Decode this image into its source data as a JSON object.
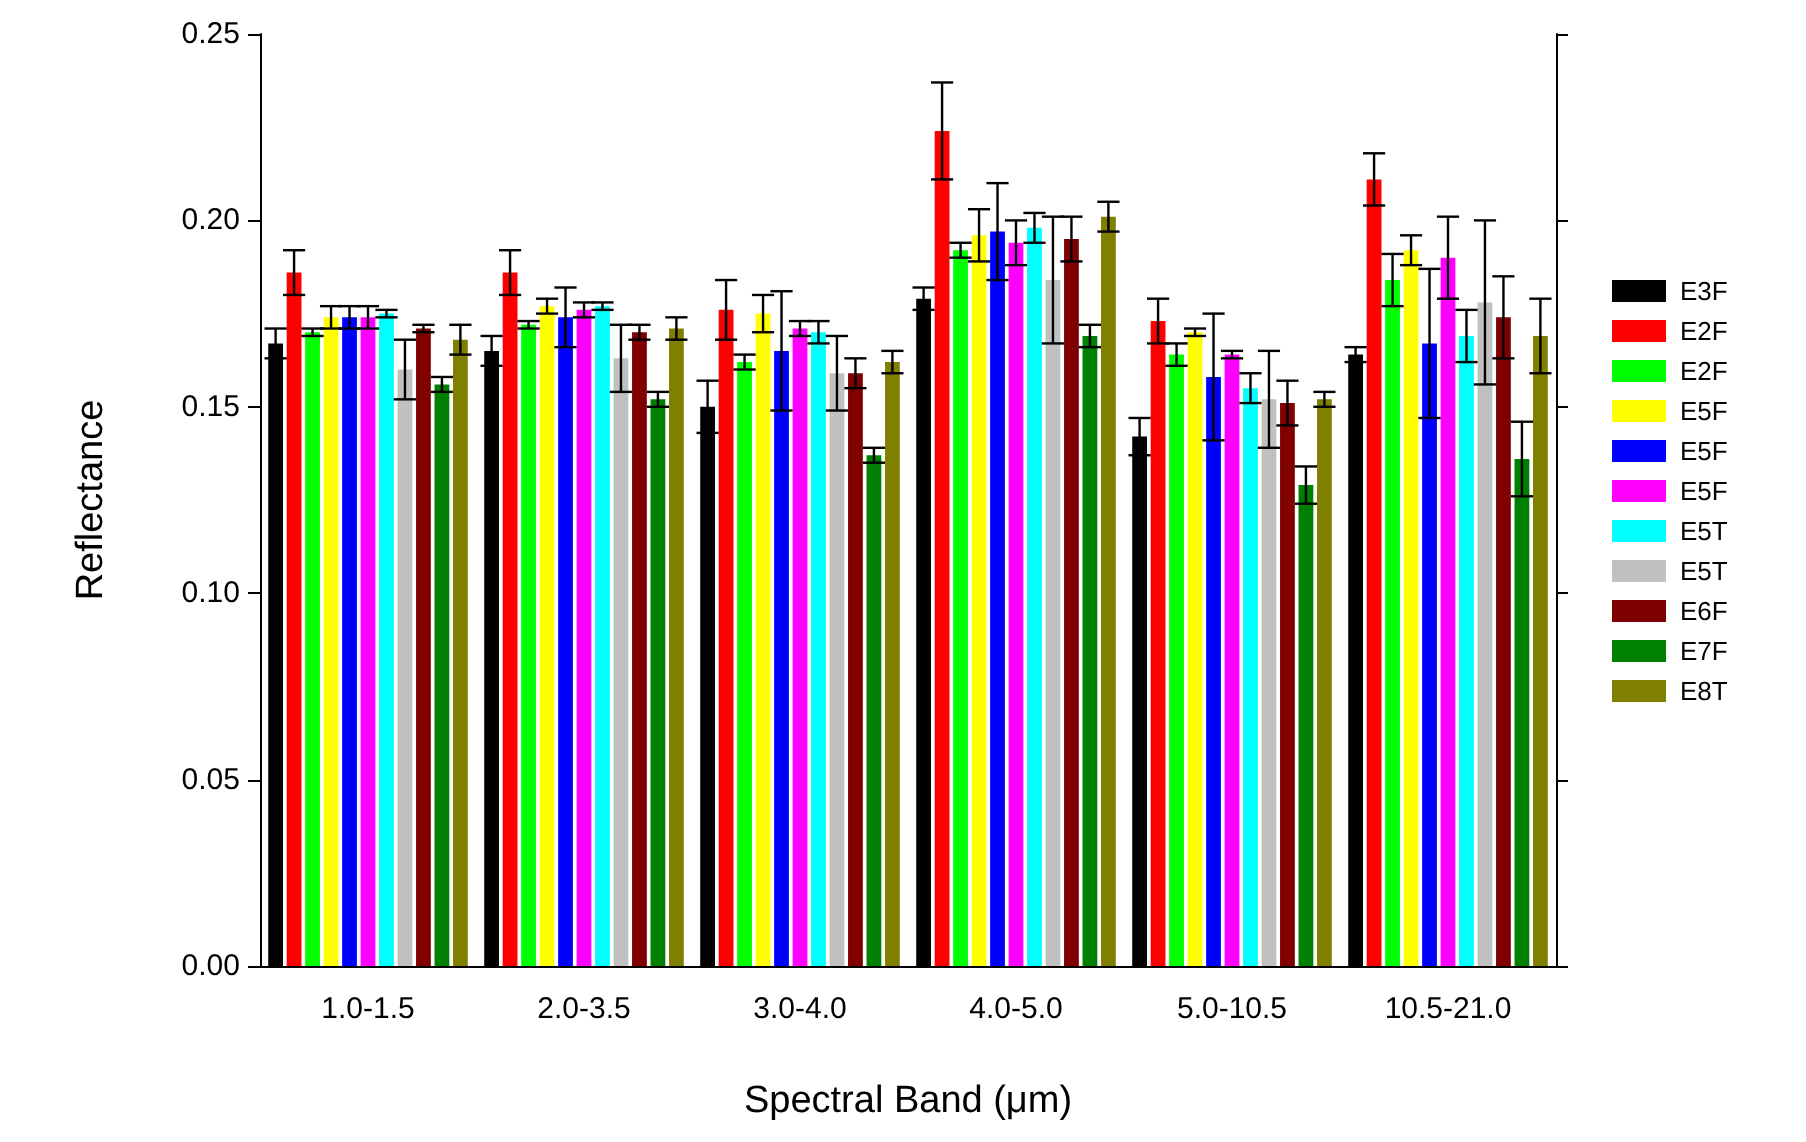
{
  "chart_data": {
    "type": "bar",
    "xlabel": "Spectral Band (μm)",
    "ylabel": "Reflectance",
    "categories": [
      "1.0-1.5",
      "2.0-3.5",
      "3.0-4.0",
      "4.0-5.0",
      "5.0-10.5",
      "10.5-21.0"
    ],
    "ylim": [
      0,
      0.25
    ],
    "yticks": [
      {
        "value": 0,
        "label": "0.00"
      },
      {
        "value": 0.05,
        "label": "0.05"
      },
      {
        "value": 0.1,
        "label": "0.10"
      },
      {
        "value": 0.15,
        "label": "0.15"
      },
      {
        "value": 0.2,
        "label": "0.20"
      },
      {
        "value": 0.25,
        "label": "0.25"
      }
    ],
    "grid": false,
    "legend": "right",
    "series": [
      {
        "name": "E3F",
        "color": "#000000",
        "values": [
          0.167,
          0.165,
          0.15,
          0.179,
          0.142,
          0.164
        ],
        "errors": [
          0.004,
          0.004,
          0.007,
          0.003,
          0.005,
          0.002
        ]
      },
      {
        "name": "E2F",
        "color": "#ff0000",
        "values": [
          0.186,
          0.186,
          0.176,
          0.224,
          0.173,
          0.211
        ],
        "errors": [
          0.006,
          0.006,
          0.008,
          0.013,
          0.006,
          0.007
        ]
      },
      {
        "name": "E2F",
        "color": "#00ff00",
        "values": [
          0.17,
          0.172,
          0.162,
          0.192,
          0.164,
          0.184
        ],
        "errors": [
          0.001,
          0.001,
          0.002,
          0.002,
          0.003,
          0.007
        ]
      },
      {
        "name": "E5F",
        "color": "#ffff00",
        "values": [
          0.174,
          0.177,
          0.175,
          0.196,
          0.17,
          0.192
        ],
        "errors": [
          0.003,
          0.002,
          0.005,
          0.007,
          0.001,
          0.004
        ]
      },
      {
        "name": "E5F",
        "color": "#0000ff",
        "values": [
          0.174,
          0.174,
          0.165,
          0.197,
          0.158,
          0.167
        ],
        "errors": [
          0.003,
          0.008,
          0.016,
          0.013,
          0.017,
          0.02
        ]
      },
      {
        "name": "E5F",
        "color": "#ff00ff",
        "values": [
          0.174,
          0.176,
          0.171,
          0.194,
          0.164,
          0.19
        ],
        "errors": [
          0.003,
          0.002,
          0.002,
          0.006,
          0.001,
          0.011
        ]
      },
      {
        "name": "E5T",
        "color": "#00ffff",
        "values": [
          0.175,
          0.177,
          0.17,
          0.198,
          0.155,
          0.169
        ],
        "errors": [
          0.001,
          0.001,
          0.003,
          0.004,
          0.004,
          0.007
        ]
      },
      {
        "name": "E5T",
        "color": "#c0c0c0",
        "values": [
          0.16,
          0.163,
          0.159,
          0.184,
          0.152,
          0.178
        ],
        "errors": [
          0.008,
          0.009,
          0.01,
          0.017,
          0.013,
          0.022
        ]
      },
      {
        "name": "E6F",
        "color": "#800000",
        "values": [
          0.171,
          0.17,
          0.159,
          0.195,
          0.151,
          0.174
        ],
        "errors": [
          0.001,
          0.002,
          0.004,
          0.006,
          0.006,
          0.011
        ]
      },
      {
        "name": "E7F",
        "color": "#008000",
        "values": [
          0.156,
          0.152,
          0.137,
          0.169,
          0.129,
          0.136
        ],
        "errors": [
          0.002,
          0.002,
          0.002,
          0.003,
          0.005,
          0.01
        ]
      },
      {
        "name": "E8T",
        "color": "#808000",
        "values": [
          0.168,
          0.171,
          0.162,
          0.201,
          0.152,
          0.169
        ],
        "errors": [
          0.004,
          0.003,
          0.003,
          0.004,
          0.002,
          0.01
        ]
      }
    ]
  }
}
